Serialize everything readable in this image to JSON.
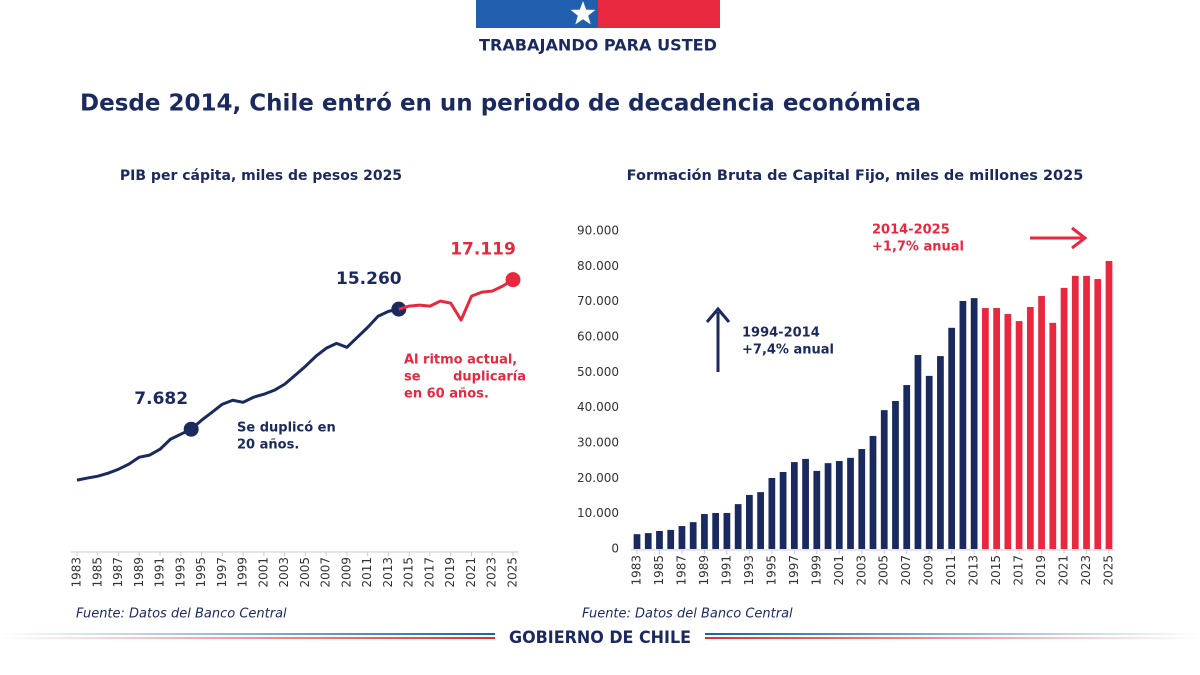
{
  "header": {
    "tagline": "TRABAJANDO PARA USTED"
  },
  "title": "Desde 2014, Chile entró en un periodo de decadencia económica",
  "footer": "GOBIERNO DE CHILE",
  "chart_data": [
    {
      "type": "line",
      "title": "PIB per cápita, miles de pesos 2025",
      "source": "Fuente: Datos del Banco Central",
      "categories": [
        "1983",
        null,
        "1985",
        null,
        "1987",
        null,
        "1989",
        null,
        "1991",
        null,
        "1993",
        null,
        "1995",
        null,
        "1997",
        null,
        "1999",
        null,
        "2001",
        null,
        "2003",
        null,
        "2005",
        null,
        "2007",
        null,
        "2009",
        null,
        "2011",
        null,
        "2013",
        null,
        "2015",
        null,
        "2017",
        null,
        "2019",
        null,
        "2021",
        null,
        "2023",
        null,
        "2025"
      ],
      "ylim": [
        0,
        20000
      ],
      "series": [
        {
          "color": "#1b2a5e",
          "values": [
            4470,
            4600,
            4720,
            4910,
            5160,
            5480,
            5920,
            6050,
            6420,
            7050,
            7370,
            7682,
            8250,
            8750,
            9260,
            9510,
            9380,
            9700,
            9890,
            10140,
            10520,
            11080,
            11650,
            12280,
            12790,
            13100,
            12850,
            13480,
            14110,
            14810,
            15120,
            15260,
            null,
            null,
            null,
            null,
            null,
            null,
            null,
            null,
            null,
            null,
            null
          ],
          "value_labels": [
            null,
            null,
            null,
            null,
            null,
            null,
            null,
            null,
            null,
            null,
            null,
            "7.682",
            null,
            null,
            null,
            null,
            null,
            null,
            null,
            null,
            null,
            null,
            null,
            null,
            null,
            null,
            null,
            null,
            null,
            null,
            null,
            "15.260",
            null,
            null,
            null,
            null,
            null,
            null,
            null,
            null,
            null,
            null,
            null
          ]
        },
        {
          "color": "#e8283e",
          "values": [
            null,
            null,
            null,
            null,
            null,
            null,
            null,
            null,
            null,
            null,
            null,
            null,
            null,
            null,
            null,
            null,
            null,
            null,
            null,
            null,
            null,
            null,
            null,
            null,
            null,
            null,
            null,
            null,
            null,
            null,
            null,
            15260,
            15450,
            15510,
            15450,
            15770,
            15640,
            14570,
            16080,
            16330,
            16400,
            16710,
            17119
          ],
          "value_labels": [
            null,
            null,
            null,
            null,
            null,
            null,
            null,
            null,
            null,
            null,
            null,
            null,
            null,
            null,
            null,
            null,
            null,
            null,
            null,
            null,
            null,
            null,
            null,
            null,
            null,
            null,
            null,
            null,
            null,
            null,
            null,
            null,
            null,
            null,
            null,
            null,
            null,
            null,
            null,
            null,
            null,
            null,
            "17.119"
          ]
        }
      ],
      "annotations": [
        {
          "lines": [
            "Se duplicó en",
            "20 años."
          ]
        },
        {
          "lines": [
            "Al ritmo actual,",
            "se duplicaría",
            "en 60 años."
          ]
        }
      ]
    },
    {
      "type": "bar",
      "title": "Formación Bruta de Capital Fijo, miles de millones 2025",
      "source": "Fuente: Datos del Banco Central",
      "categories": [
        "1983",
        null,
        "1985",
        null,
        "1987",
        null,
        "1989",
        null,
        "1991",
        null,
        "1993",
        null,
        "1995",
        null,
        "1997",
        null,
        "1999",
        null,
        "2001",
        null,
        "2003",
        null,
        "2005",
        null,
        "2007",
        null,
        "2009",
        null,
        "2011",
        null,
        "2013",
        null,
        "2015",
        null,
        "2017",
        null,
        "2019",
        null,
        "2021",
        null,
        "2023",
        null,
        "2025"
      ],
      "ylim": [
        0,
        90000
      ],
      "yticks": [
        0,
        {
          "value": 10000,
          "label": "10.000"
        },
        {
          "value": 20000,
          "label": "20.000"
        },
        {
          "value": 30000,
          "label": "30.000"
        },
        {
          "value": 40000,
          "label": "40.000"
        },
        {
          "value": 50000,
          "label": "50.000"
        },
        {
          "value": 60000,
          "label": "60.000"
        },
        {
          "value": 70000,
          "label": "70.000"
        },
        {
          "value": 80000,
          "label": "80.000"
        },
        {
          "value": 90000,
          "label": "90.000"
        }
      ],
      "series": [
        {
          "color": "#1b2a5e",
          "values": [
            4200,
            4500,
            5100,
            5400,
            6500,
            7600,
            9900,
            10200,
            10200,
            12700,
            15300,
            16100,
            20100,
            21800,
            24600,
            25500,
            22100,
            24300,
            24900,
            25800,
            28300,
            32000,
            39300,
            41900,
            46400,
            54900,
            49000,
            54600,
            62600,
            70200,
            71000,
            null,
            null,
            null,
            null,
            null,
            null,
            null,
            null,
            null,
            null,
            null,
            null
          ]
        },
        {
          "color": "#e8283e",
          "values": [
            null,
            null,
            null,
            null,
            null,
            null,
            null,
            null,
            null,
            null,
            null,
            null,
            null,
            null,
            null,
            null,
            null,
            null,
            null,
            null,
            null,
            null,
            null,
            null,
            null,
            null,
            null,
            null,
            null,
            null,
            null,
            68200,
            68200,
            66500,
            64500,
            68500,
            71600,
            64000,
            73900,
            77300,
            77300,
            76400,
            81500
          ]
        }
      ],
      "annotations": [
        {
          "lines": [
            "1994-2014",
            "+7,4% anual"
          ]
        },
        {
          "lines": [
            "2014-2025",
            "+1,7% anual"
          ]
        }
      ]
    }
  ]
}
